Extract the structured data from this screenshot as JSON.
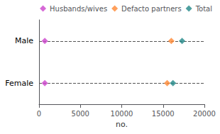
{
  "chart_data": {
    "type": "dot",
    "orientation": "horizontal",
    "categories": [
      "Male",
      "Female"
    ],
    "series": [
      {
        "name": "Husbands/wives",
        "color": "#cc44cc",
        "values": [
          700,
          700
        ],
        "marker": "diamond"
      },
      {
        "name": "Defacto partners",
        "color": "#ff8833",
        "values": [
          16000,
          15500
        ],
        "marker": "diamond"
      },
      {
        "name": "Total",
        "color": "#228888",
        "values": [
          17300,
          16200
        ],
        "marker": "diamond"
      }
    ],
    "xlabel": "no.",
    "xlim": [
      0,
      20000
    ],
    "xticks": [
      0,
      5000,
      10000,
      15000,
      20000
    ],
    "grid": false,
    "legend": "upper right"
  }
}
